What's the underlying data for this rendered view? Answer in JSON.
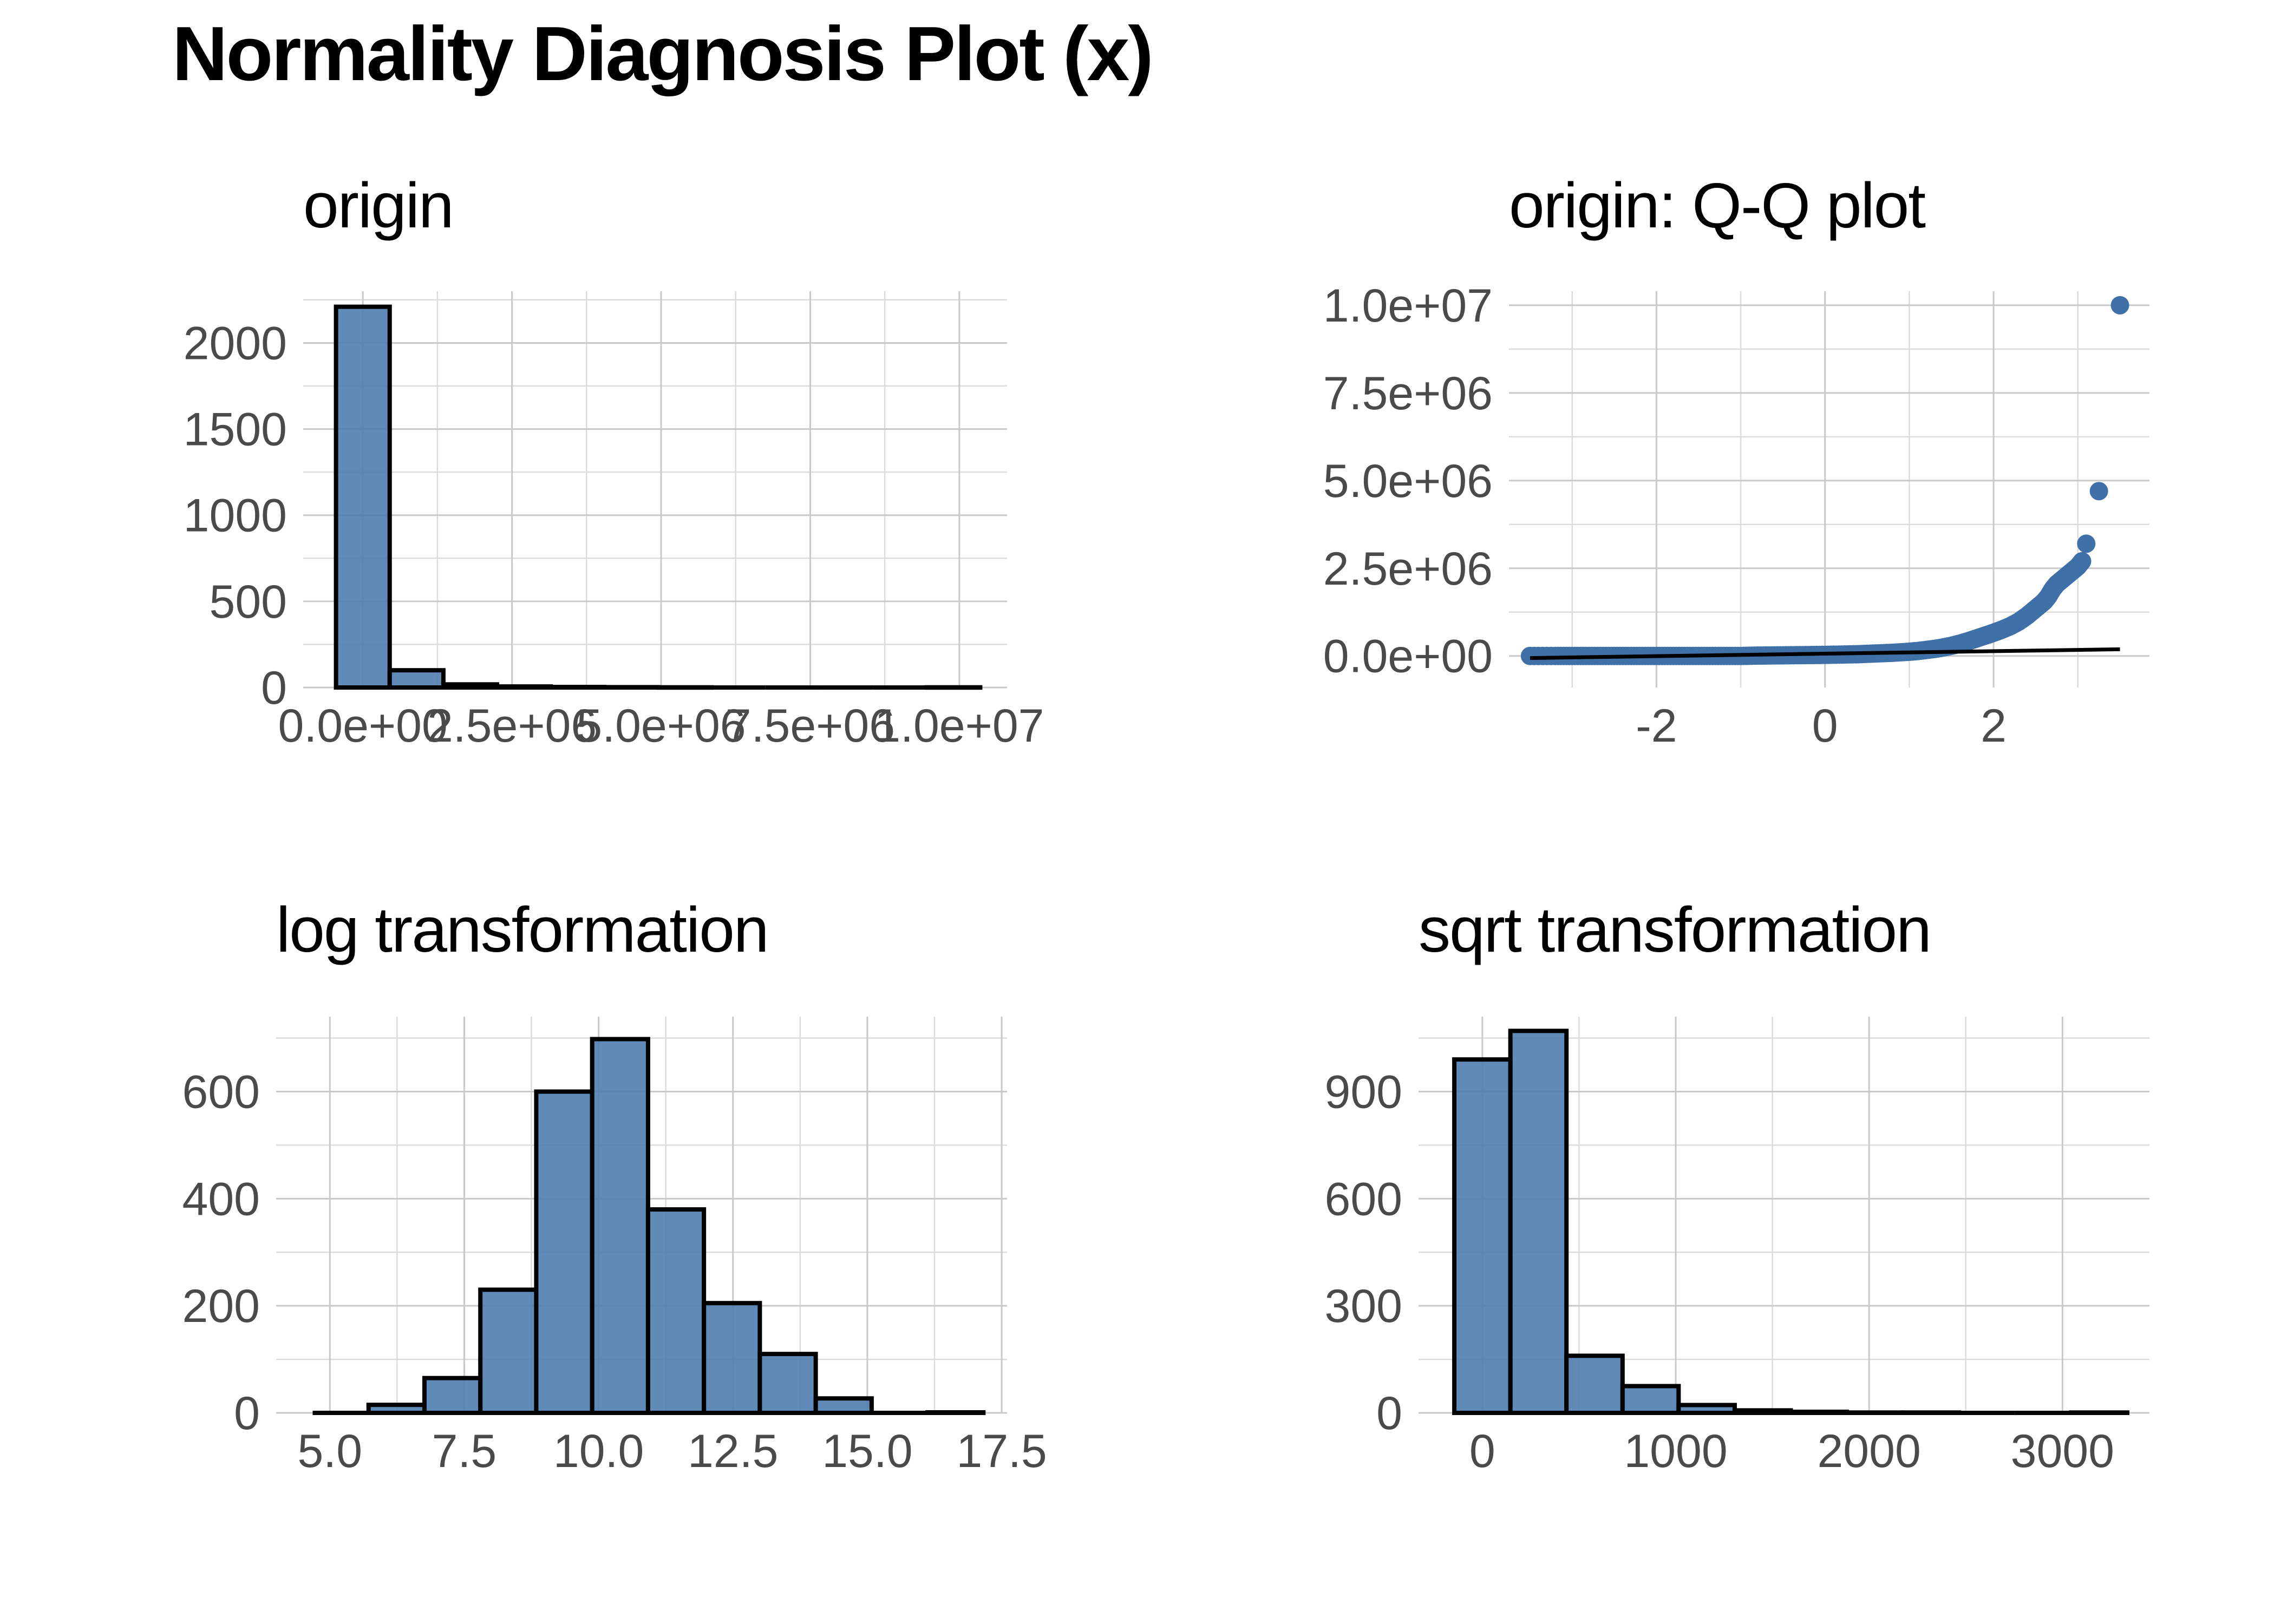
{
  "title": "Normality Diagnosis Plot (x)",
  "colors": {
    "bar_fill": "#4a7aae",
    "bar_outline": "#000000",
    "point": "#3f70a8",
    "grid": "#c9c9c9"
  },
  "chart_data": [
    {
      "id": "origin",
      "type": "bar",
      "title": "origin",
      "xlabel": "",
      "ylabel": "",
      "xlim": [
        -1000000,
        10800000
      ],
      "ylim": [
        0,
        2300
      ],
      "x_ticks": [
        0,
        2500000,
        5000000,
        7500000,
        10000000
      ],
      "x_tick_labels": [
        "0.0e+00",
        "2.5e+06",
        "5.0e+06",
        "7.5e+06",
        "1.0e+07"
      ],
      "y_ticks": [
        0,
        500,
        1000,
        1500,
        2000
      ],
      "y_tick_labels": [
        "0",
        "500",
        "1000",
        "1500",
        "2000"
      ],
      "bins": [
        {
          "x0": -450000,
          "x1": 450000,
          "count": 2210
        },
        {
          "x0": 450000,
          "x1": 1350000,
          "count": 100
        },
        {
          "x0": 1350000,
          "x1": 2250000,
          "count": 18
        },
        {
          "x0": 2250000,
          "x1": 3150000,
          "count": 6
        },
        {
          "x0": 3150000,
          "x1": 4050000,
          "count": 3
        },
        {
          "x0": 4050000,
          "x1": 4950000,
          "count": 2
        },
        {
          "x0": 4950000,
          "x1": 5850000,
          "count": 1
        },
        {
          "x0": 5850000,
          "x1": 6750000,
          "count": 0
        },
        {
          "x0": 6750000,
          "x1": 7650000,
          "count": 0
        },
        {
          "x0": 7650000,
          "x1": 8550000,
          "count": 0
        },
        {
          "x0": 8550000,
          "x1": 9450000,
          "count": 0
        },
        {
          "x0": 9450000,
          "x1": 10350000,
          "count": 1
        }
      ]
    },
    {
      "id": "qq",
      "type": "scatter",
      "title": "origin: Q-Q plot",
      "xlabel": "",
      "ylabel": "",
      "xlim": [
        -3.75,
        3.85
      ],
      "ylim": [
        -900000,
        10400000
      ],
      "x_ticks": [
        -2,
        0,
        2
      ],
      "x_tick_labels": [
        "-2",
        "0",
        "2"
      ],
      "y_ticks": [
        0,
        2500000,
        5000000,
        7500000,
        10000000
      ],
      "y_tick_labels": [
        "0.0e+00",
        "2.5e+06",
        "5.0e+06",
        "7.5e+06",
        "1.0e+07"
      ],
      "points": [
        [
          -3.5,
          0
        ],
        [
          -3.2,
          0
        ],
        [
          -3.0,
          0
        ],
        [
          -2.8,
          0
        ],
        [
          -2.6,
          0
        ],
        [
          -2.4,
          0
        ],
        [
          -2.2,
          0
        ],
        [
          -2.0,
          0
        ],
        [
          -1.8,
          0
        ],
        [
          -1.6,
          0
        ],
        [
          -1.4,
          0
        ],
        [
          -1.2,
          0
        ],
        [
          -1.0,
          0
        ],
        [
          -0.8,
          10000
        ],
        [
          -0.6,
          15000
        ],
        [
          -0.4,
          20000
        ],
        [
          -0.2,
          25000
        ],
        [
          0.0,
          30000
        ],
        [
          0.2,
          40000
        ],
        [
          0.4,
          50000
        ],
        [
          0.6,
          70000
        ],
        [
          0.8,
          90000
        ],
        [
          1.0,
          120000
        ],
        [
          1.1,
          140000
        ],
        [
          1.2,
          170000
        ],
        [
          1.3,
          200000
        ],
        [
          1.4,
          240000
        ],
        [
          1.5,
          290000
        ],
        [
          1.6,
          350000
        ],
        [
          1.7,
          420000
        ],
        [
          1.8,
          500000
        ],
        [
          1.9,
          580000
        ],
        [
          2.0,
          660000
        ],
        [
          2.1,
          750000
        ],
        [
          2.2,
          850000
        ],
        [
          2.3,
          980000
        ],
        [
          2.4,
          1150000
        ],
        [
          2.5,
          1350000
        ],
        [
          2.6,
          1550000
        ],
        [
          2.65,
          1700000
        ],
        [
          2.7,
          1900000
        ],
        [
          2.75,
          2050000
        ],
        [
          2.8,
          2150000
        ],
        [
          2.85,
          2250000
        ],
        [
          2.9,
          2350000
        ],
        [
          2.95,
          2450000
        ],
        [
          3.0,
          2550000
        ],
        [
          3.05,
          2700000
        ],
        [
          3.1,
          3200000
        ],
        [
          3.25,
          4700000
        ],
        [
          3.5,
          10000000
        ]
      ],
      "reference_line": [
        [
          -3.5,
          -60000
        ],
        [
          3.5,
          190000
        ]
      ]
    },
    {
      "id": "log",
      "type": "bar",
      "title": "log transformation",
      "xlabel": "",
      "ylabel": "",
      "xlim": [
        4.0,
        17.6
      ],
      "ylim": [
        0,
        740
      ],
      "x_ticks": [
        5.0,
        7.5,
        10.0,
        12.5,
        15.0,
        17.5
      ],
      "x_tick_labels": [
        "5.0",
        "7.5",
        "10.0",
        "12.5",
        "15.0",
        "17.5"
      ],
      "y_ticks": [
        0,
        200,
        400,
        600
      ],
      "y_tick_labels": [
        "0",
        "200",
        "400",
        "600"
      ],
      "bins": [
        {
          "x0": 4.68,
          "x1": 5.72,
          "count": 0
        },
        {
          "x0": 5.72,
          "x1": 6.76,
          "count": 15
        },
        {
          "x0": 6.76,
          "x1": 7.8,
          "count": 65
        },
        {
          "x0": 7.8,
          "x1": 8.84,
          "count": 230
        },
        {
          "x0": 8.84,
          "x1": 9.88,
          "count": 600
        },
        {
          "x0": 9.88,
          "x1": 10.92,
          "count": 698
        },
        {
          "x0": 10.92,
          "x1": 11.96,
          "count": 380
        },
        {
          "x0": 11.96,
          "x1": 13.0,
          "count": 205
        },
        {
          "x0": 13.0,
          "x1": 14.04,
          "count": 110
        },
        {
          "x0": 14.04,
          "x1": 15.08,
          "count": 27
        },
        {
          "x0": 15.08,
          "x1": 16.12,
          "count": 0
        },
        {
          "x0": 16.12,
          "x1": 17.16,
          "count": 1
        }
      ]
    },
    {
      "id": "sqrt",
      "type": "bar",
      "title": "sqrt transformation",
      "xlabel": "",
      "ylabel": "",
      "xlim": [
        -330,
        3450
      ],
      "ylim": [
        0,
        1110
      ],
      "x_ticks": [
        0,
        1000,
        2000,
        3000
      ],
      "x_tick_labels": [
        "0",
        "1000",
        "2000",
        "3000"
      ],
      "y_ticks": [
        0,
        300,
        600,
        900
      ],
      "y_tick_labels": [
        "0",
        "300",
        "600",
        "900"
      ],
      "bins": [
        {
          "x0": -145,
          "x1": 145,
          "count": 990
        },
        {
          "x0": 145,
          "x1": 435,
          "count": 1070
        },
        {
          "x0": 435,
          "x1": 725,
          "count": 160
        },
        {
          "x0": 725,
          "x1": 1015,
          "count": 75
        },
        {
          "x0": 1015,
          "x1": 1305,
          "count": 22
        },
        {
          "x0": 1305,
          "x1": 1595,
          "count": 7
        },
        {
          "x0": 1595,
          "x1": 1885,
          "count": 3
        },
        {
          "x0": 1885,
          "x1": 2175,
          "count": 1
        },
        {
          "x0": 2175,
          "x1": 2465,
          "count": 1
        },
        {
          "x0": 2465,
          "x1": 2755,
          "count": 0
        },
        {
          "x0": 2755,
          "x1": 3045,
          "count": 0
        },
        {
          "x0": 3045,
          "x1": 3335,
          "count": 1
        }
      ]
    }
  ]
}
